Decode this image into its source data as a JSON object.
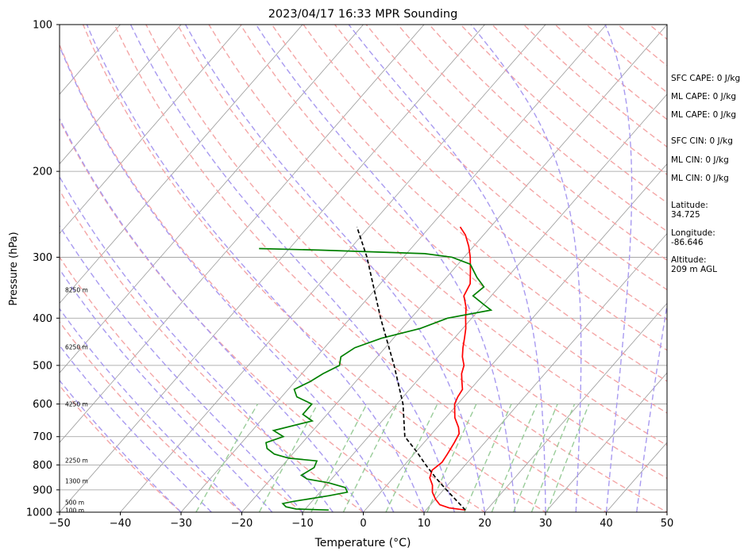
{
  "chart_data": {
    "type": "line",
    "title": "2023/04/17 16:33 MPR Sounding",
    "xlabel": "Temperature (°C)",
    "ylabel": "Pressure (hPa)",
    "xlim": [
      -50,
      50
    ],
    "ylim": [
      1000,
      100
    ],
    "y_scale": "log",
    "skew": true,
    "x_ticks": [
      -50,
      -40,
      -30,
      -20,
      -10,
      0,
      10,
      20,
      30,
      40,
      50
    ],
    "y_ticks": [
      100,
      200,
      300,
      400,
      500,
      600,
      700,
      800,
      900,
      1000
    ],
    "grid": true,
    "series": [
      {
        "name": "temperature",
        "color": "#ff0000",
        "points": [
          {
            "p": 990,
            "t": 16.5
          },
          {
            "p": 980,
            "t": 13.5
          },
          {
            "p": 965,
            "t": 11.5
          },
          {
            "p": 940,
            "t": 10.0
          },
          {
            "p": 910,
            "t": 8.5
          },
          {
            "p": 880,
            "t": 7.5
          },
          {
            "p": 850,
            "t": 6.0
          },
          {
            "p": 820,
            "t": 5.3
          },
          {
            "p": 790,
            "t": 5.8
          },
          {
            "p": 760,
            "t": 5.5
          },
          {
            "p": 720,
            "t": 5.0
          },
          {
            "p": 690,
            "t": 4.5
          },
          {
            "p": 670,
            "t": 3.5
          },
          {
            "p": 640,
            "t": 1.5
          },
          {
            "p": 600,
            "t": -0.5
          },
          {
            "p": 580,
            "t": -1.0
          },
          {
            "p": 560,
            "t": -1.3
          },
          {
            "p": 540,
            "t": -2.5
          },
          {
            "p": 520,
            "t": -3.7
          },
          {
            "p": 500,
            "t": -4.5
          },
          {
            "p": 480,
            "t": -6.0
          },
          {
            "p": 460,
            "t": -7.2
          },
          {
            "p": 440,
            "t": -8.3
          },
          {
            "p": 420,
            "t": -9.5
          },
          {
            "p": 400,
            "t": -11.0
          },
          {
            "p": 380,
            "t": -12.5
          },
          {
            "p": 360,
            "t": -14.5
          },
          {
            "p": 340,
            "t": -15.2
          },
          {
            "p": 320,
            "t": -17.0
          },
          {
            "p": 300,
            "t": -19.0
          },
          {
            "p": 285,
            "t": -20.8
          },
          {
            "p": 270,
            "t": -23.0
          },
          {
            "p": 260,
            "t": -25.0
          }
        ]
      },
      {
        "name": "dewpoint",
        "color": "#008000",
        "points": [
          {
            "p": 990,
            "t": -6.0
          },
          {
            "p": 985,
            "t": -11.5
          },
          {
            "p": 975,
            "t": -13.5
          },
          {
            "p": 960,
            "t": -14.5
          },
          {
            "p": 950,
            "t": -13.0
          },
          {
            "p": 940,
            "t": -11.0
          },
          {
            "p": 925,
            "t": -8.0
          },
          {
            "p": 910,
            "t": -5.5
          },
          {
            "p": 890,
            "t": -6.5
          },
          {
            "p": 870,
            "t": -10.0
          },
          {
            "p": 855,
            "t": -14.0
          },
          {
            "p": 840,
            "t": -15.5
          },
          {
            "p": 810,
            "t": -14.5
          },
          {
            "p": 785,
            "t": -15.0
          },
          {
            "p": 775,
            "t": -20.0
          },
          {
            "p": 760,
            "t": -23.0
          },
          {
            "p": 740,
            "t": -25.0
          },
          {
            "p": 720,
            "t": -26.0
          },
          {
            "p": 700,
            "t": -24.0
          },
          {
            "p": 680,
            "t": -26.5
          },
          {
            "p": 650,
            "t": -21.5
          },
          {
            "p": 630,
            "t": -24.0
          },
          {
            "p": 600,
            "t": -24.0
          },
          {
            "p": 580,
            "t": -27.5
          },
          {
            "p": 560,
            "t": -29.0
          },
          {
            "p": 540,
            "t": -27.5
          },
          {
            "p": 520,
            "t": -26.5
          },
          {
            "p": 500,
            "t": -25.0
          },
          {
            "p": 480,
            "t": -26.0
          },
          {
            "p": 460,
            "t": -25.0
          },
          {
            "p": 440,
            "t": -22.0
          },
          {
            "p": 420,
            "t": -17.0
          },
          {
            "p": 400,
            "t": -14.0
          },
          {
            "p": 385,
            "t": -8.0
          },
          {
            "p": 375,
            "t": -10.0
          },
          {
            "p": 360,
            "t": -13.0
          },
          {
            "p": 345,
            "t": -12.5
          },
          {
            "p": 330,
            "t": -15.0
          },
          {
            "p": 310,
            "t": -18.0
          },
          {
            "p": 300,
            "t": -22.0
          },
          {
            "p": 295,
            "t": -27.0
          },
          {
            "p": 290,
            "t": -45.0
          },
          {
            "p": 288,
            "t": -55.0
          }
        ]
      },
      {
        "name": "parcel",
        "color": "#000000",
        "style": "dashed",
        "points": [
          {
            "p": 990,
            "t": 16.5
          },
          {
            "p": 900,
            "t": 10.5
          },
          {
            "p": 850,
            "t": 7.0
          },
          {
            "p": 800,
            "t": 3.5
          },
          {
            "p": 750,
            "t": 0.0
          },
          {
            "p": 700,
            "t": -4.0
          },
          {
            "p": 600,
            "t": -9.0
          },
          {
            "p": 500,
            "t": -16.0
          },
          {
            "p": 400,
            "t": -25.0
          },
          {
            "p": 300,
            "t": -36.0
          },
          {
            "p": 260,
            "t": -42.0
          }
        ]
      }
    ],
    "height_labels": [
      {
        "p": 990,
        "label": "100 m"
      },
      {
        "p": 955,
        "label": "500 m"
      },
      {
        "p": 862,
        "label": "1300 m"
      },
      {
        "p": 782,
        "label": "2250 m"
      },
      {
        "p": 600,
        "label": "4250 m"
      },
      {
        "p": 458,
        "label": "6250 m"
      },
      {
        "p": 350,
        "label": "8250 m"
      }
    ]
  },
  "side_panel": {
    "sfc_cape": "SFC CAPE: 0 J/kg",
    "ml_cape_1": "ML CAPE: 0 J/kg",
    "ml_cape_2": "ML CAPE: 0 J/kg",
    "sfc_cin": "SFC CIN: 0 J/kg",
    "ml_cin_1": "ML CIN: 0 J/kg",
    "ml_cin_2": "ML CIN: 0 J/kg",
    "latitude": "Latitude:\n34.725",
    "longitude": "Longitude:\n-86.646",
    "altitude": "Altitude:\n209 m AGL"
  },
  "colors": {
    "temperature": "#ff0000",
    "dewpoint": "#008000",
    "parcel": "#000000",
    "dry_adiabat": "#f4a6a6",
    "moist_adiabat": "#a89af0",
    "mixing_ratio": "#99cc99",
    "isotherm": "#999999"
  }
}
